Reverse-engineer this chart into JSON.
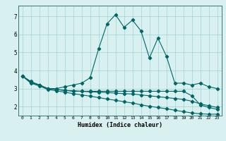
{
  "xlabel": "Humidex (Indice chaleur)",
  "background_color": "#d8f0f0",
  "line_color": "#006666",
  "xlim": [
    -0.5,
    23.5
  ],
  "ylim": [
    1.5,
    7.6
  ],
  "series1_x": [
    0,
    1,
    2,
    3,
    4,
    5,
    6,
    7,
    8,
    9,
    10,
    11,
    12,
    13,
    14,
    15,
    16,
    17,
    18,
    19,
    20,
    21,
    22,
    23
  ],
  "series1_y": [
    3.7,
    3.4,
    3.2,
    3.0,
    3.0,
    3.1,
    3.2,
    3.3,
    3.6,
    5.2,
    6.6,
    7.1,
    6.4,
    6.8,
    6.2,
    4.7,
    5.8,
    4.8,
    3.3,
    3.3,
    3.2,
    3.3,
    3.1,
    3.0
  ],
  "series2_x": [
    0,
    1,
    2,
    3,
    4,
    5,
    6,
    7,
    8,
    9,
    10,
    11,
    12,
    13,
    14,
    15,
    16,
    17,
    18,
    19,
    20,
    21,
    22,
    23
  ],
  "series2_y": [
    3.7,
    3.35,
    3.2,
    3.0,
    2.95,
    2.9,
    2.85,
    2.85,
    2.85,
    2.85,
    2.85,
    2.85,
    2.85,
    2.85,
    2.85,
    2.85,
    2.85,
    2.85,
    2.85,
    2.85,
    2.6,
    2.1,
    1.95,
    1.85
  ],
  "series3_x": [
    0,
    1,
    2,
    3,
    4,
    5,
    6,
    7,
    8,
    9,
    10,
    11,
    12,
    13,
    14,
    15,
    16,
    17,
    18,
    19,
    20,
    21,
    22,
    23
  ],
  "series3_y": [
    3.7,
    3.35,
    3.2,
    3.0,
    2.95,
    2.9,
    2.88,
    2.85,
    2.82,
    2.8,
    2.78,
    2.75,
    2.72,
    2.7,
    2.65,
    2.6,
    2.55,
    2.5,
    2.45,
    2.4,
    2.3,
    2.15,
    2.05,
    1.95
  ],
  "series4_x": [
    0,
    1,
    2,
    3,
    4,
    5,
    6,
    7,
    8,
    9,
    10,
    11,
    12,
    13,
    14,
    15,
    16,
    17,
    18,
    19,
    20,
    21,
    22,
    23
  ],
  "series4_y": [
    3.7,
    3.3,
    3.15,
    2.95,
    2.88,
    2.8,
    2.72,
    2.65,
    2.58,
    2.5,
    2.42,
    2.35,
    2.27,
    2.2,
    2.1,
    2.02,
    1.95,
    1.88,
    1.8,
    1.72,
    1.65,
    1.6,
    1.58,
    1.58
  ]
}
